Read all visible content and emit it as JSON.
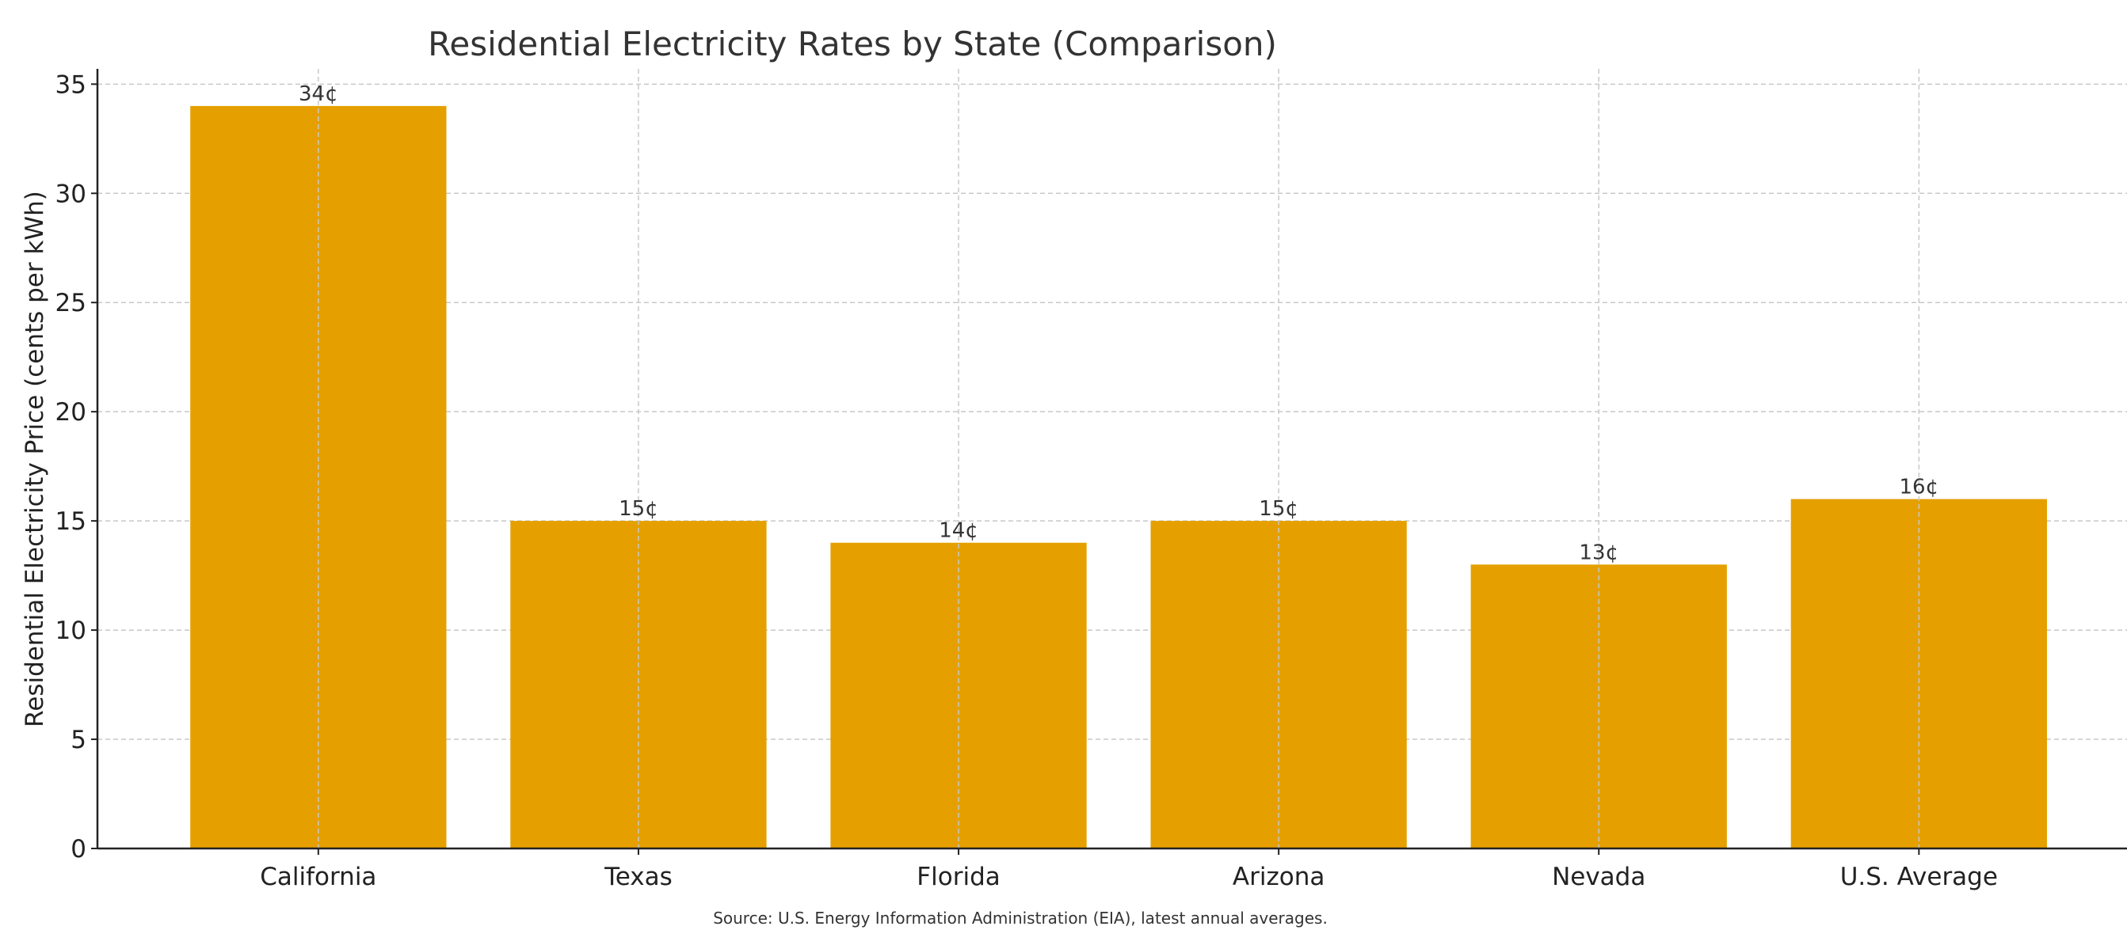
{
  "chart_data": {
    "type": "bar",
    "title": "Residential Electricity Rates by State (Comparison)",
    "xlabel": "",
    "ylabel": "Residential Electricity Price (cents per kWh)",
    "categories": [
      "California",
      "Texas",
      "Florida",
      "Arizona",
      "Nevada",
      "U.S. Average"
    ],
    "values": [
      34,
      15,
      14,
      15,
      13,
      16
    ],
    "value_labels": [
      "34¢",
      "15¢",
      "14¢",
      "15¢",
      "13¢",
      "16¢"
    ],
    "yticks": [
      0,
      5,
      10,
      15,
      20,
      25,
      30,
      35
    ],
    "ylim": [
      0,
      35.7
    ],
    "grid": true,
    "bar_color": "#E5A000",
    "footnote": "Source: U.S. Energy Information Administration (EIA), latest annual averages."
  }
}
